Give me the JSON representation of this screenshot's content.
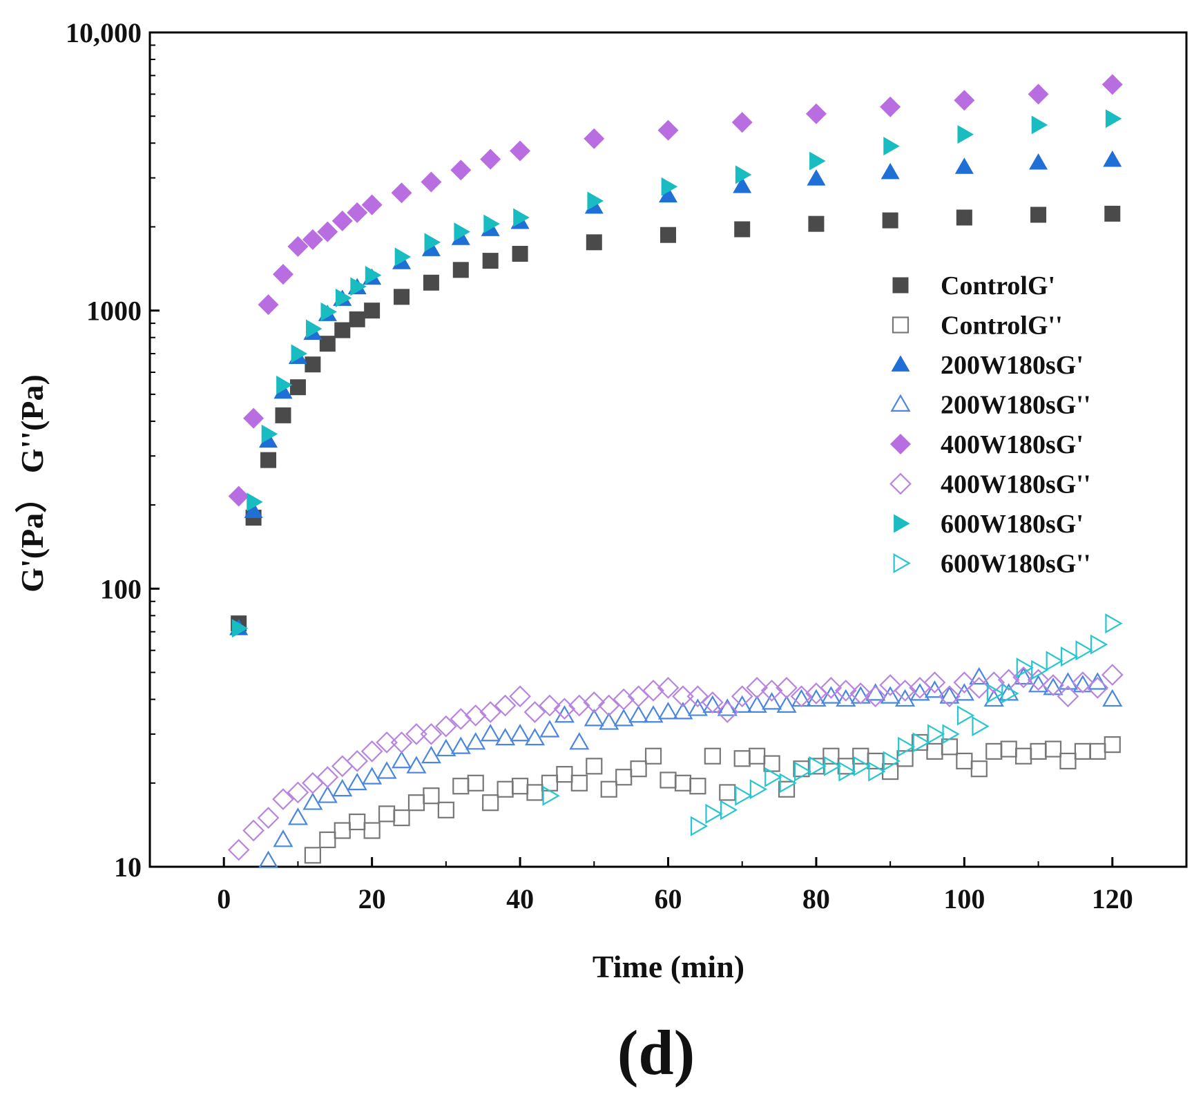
{
  "chart_data": {
    "type": "scatter",
    "panel_label": "(d)",
    "xlabel": "Time (min)",
    "ylabel": "G'(Pa） G''(Pa)",
    "xlim": [
      -10,
      130
    ],
    "ylim": [
      10,
      10000
    ],
    "yscale": "log",
    "x_ticks": [
      0,
      20,
      40,
      60,
      80,
      100,
      120
    ],
    "x_tick_labels": [
      "0",
      "20",
      "40",
      "60",
      "80",
      "100",
      "120"
    ],
    "y_ticks": [
      10,
      100,
      1000,
      10000
    ],
    "y_tick_labels": [
      "10",
      "100",
      "1000",
      "10,000"
    ],
    "legend_position": "right",
    "series": [
      {
        "name": "ControlG'",
        "marker": "square",
        "filled": true,
        "color": "#4a4a4a",
        "x": [
          2,
          4,
          6,
          8,
          10,
          12,
          14,
          16,
          18,
          20,
          24,
          28,
          32,
          36,
          40,
          50,
          60,
          70,
          80,
          90,
          100,
          110,
          120
        ],
        "y": [
          75,
          180,
          290,
          420,
          530,
          640,
          760,
          850,
          930,
          1000,
          1120,
          1260,
          1400,
          1510,
          1600,
          1760,
          1870,
          1960,
          2050,
          2110,
          2160,
          2210,
          2230
        ]
      },
      {
        "name": "ControlG''",
        "marker": "square",
        "filled": false,
        "color": "#777777",
        "x": [
          12,
          14,
          16,
          18,
          20,
          22,
          24,
          26,
          28,
          30,
          32,
          34,
          36,
          38,
          40,
          42,
          44,
          46,
          48,
          50,
          52,
          54,
          56,
          58,
          60,
          62,
          64,
          66,
          68,
          70,
          72,
          74,
          76,
          78,
          80,
          82,
          84,
          86,
          88,
          90,
          92,
          94,
          96,
          98,
          100,
          102,
          104,
          106,
          108,
          110,
          112,
          114,
          116,
          118,
          120
        ],
        "y": [
          11,
          12.5,
          13.5,
          14.5,
          13.5,
          15.5,
          15,
          17,
          18,
          16,
          19.5,
          20,
          17,
          19,
          19.5,
          18.5,
          20,
          21.5,
          20,
          23,
          19,
          21,
          22.5,
          25,
          20.5,
          20,
          19.5,
          25,
          18.5,
          24.5,
          25,
          23.5,
          19,
          22.5,
          23,
          25,
          23,
          25,
          24,
          22,
          24.5,
          28,
          26,
          27,
          24,
          22.5,
          26,
          26.5,
          25,
          26,
          26.5,
          24,
          26,
          26,
          27.5
        ]
      },
      {
        "name": "200W180sG'",
        "marker": "triangle-up",
        "filled": true,
        "color": "#1f6fd6",
        "x": [
          2,
          4,
          6,
          8,
          10,
          12,
          14,
          16,
          18,
          20,
          24,
          28,
          32,
          36,
          40,
          50,
          60,
          70,
          80,
          90,
          100,
          110,
          120
        ],
        "y": [
          72,
          190,
          340,
          510,
          680,
          830,
          970,
          1100,
          1210,
          1310,
          1490,
          1660,
          1820,
          1960,
          2080,
          2360,
          2590,
          2800,
          2980,
          3140,
          3280,
          3400,
          3480
        ]
      },
      {
        "name": "200W180sG''",
        "marker": "triangle-up",
        "filled": false,
        "color": "#4a86e0",
        "x": [
          6,
          8,
          10,
          12,
          14,
          16,
          18,
          20,
          22,
          24,
          26,
          28,
          30,
          32,
          34,
          36,
          38,
          40,
          42,
          44,
          46,
          48,
          50,
          52,
          54,
          56,
          58,
          60,
          62,
          64,
          66,
          68,
          70,
          72,
          74,
          76,
          78,
          80,
          82,
          84,
          86,
          88,
          90,
          92,
          94,
          96,
          98,
          100,
          102,
          104,
          106,
          108,
          110,
          112,
          114,
          116,
          118,
          120
        ],
        "y": [
          10.5,
          12.5,
          15,
          17,
          18,
          19,
          20,
          21,
          22,
          24,
          23,
          25,
          26.5,
          27,
          28,
          30,
          29,
          30,
          29,
          31,
          35,
          28,
          34,
          33,
          34,
          35,
          35,
          36,
          36,
          37,
          38,
          37,
          38,
          38,
          39,
          38,
          40,
          40,
          41,
          40,
          41,
          42,
          41,
          40,
          42,
          43,
          41,
          42,
          48,
          40,
          42,
          48,
          45,
          44,
          46,
          45,
          46,
          40
        ]
      },
      {
        "name": "400W180sG'",
        "marker": "diamond",
        "filled": true,
        "color": "#b86ee0",
        "x": [
          2,
          4,
          6,
          8,
          10,
          12,
          14,
          16,
          18,
          20,
          24,
          28,
          32,
          36,
          40,
          50,
          60,
          70,
          80,
          90,
          100,
          110,
          120
        ],
        "y": [
          215,
          410,
          1050,
          1350,
          1700,
          1800,
          1920,
          2100,
          2250,
          2400,
          2650,
          2900,
          3200,
          3500,
          3750,
          4150,
          4450,
          4750,
          5100,
          5400,
          5700,
          6000,
          6500
        ]
      },
      {
        "name": "400W180sG''",
        "marker": "diamond",
        "filled": false,
        "color": "#b784e0",
        "x": [
          2,
          4,
          6,
          8,
          10,
          12,
          14,
          16,
          18,
          20,
          22,
          24,
          26,
          28,
          30,
          32,
          34,
          36,
          38,
          40,
          42,
          44,
          46,
          48,
          50,
          52,
          54,
          56,
          58,
          60,
          62,
          64,
          66,
          68,
          70,
          72,
          74,
          76,
          78,
          80,
          82,
          84,
          86,
          88,
          90,
          92,
          94,
          96,
          98,
          100,
          102,
          104,
          106,
          108,
          110,
          112,
          114,
          116,
          118,
          120
        ],
        "y": [
          11.5,
          13.5,
          15,
          17.5,
          18.5,
          20,
          21,
          23,
          24,
          26,
          28,
          28,
          30,
          30,
          32,
          34,
          35,
          36,
          38,
          41,
          36,
          38,
          37,
          38,
          39,
          38,
          40,
          41,
          43,
          44,
          41,
          41,
          39,
          36,
          41,
          44,
          43,
          44,
          41,
          42,
          44,
          43,
          42,
          41,
          45,
          43,
          44,
          46,
          41,
          46,
          44,
          46,
          47,
          48,
          47,
          45,
          41,
          46,
          44,
          49
        ]
      },
      {
        "name": "600W180sG'",
        "marker": "triangle-right",
        "filled": true,
        "color": "#19bcc0",
        "x": [
          2,
          4,
          6,
          8,
          10,
          12,
          14,
          16,
          18,
          20,
          24,
          28,
          32,
          36,
          40,
          50,
          60,
          70,
          80,
          90,
          100,
          110,
          120
        ],
        "y": [
          72,
          205,
          360,
          540,
          700,
          860,
          990,
          1110,
          1220,
          1340,
          1560,
          1760,
          1920,
          2050,
          2160,
          2480,
          2790,
          3080,
          3450,
          3900,
          4300,
          4650,
          4900
        ]
      },
      {
        "name": "600W180sG''",
        "marker": "triangle-right",
        "filled": false,
        "color": "#26c6d0",
        "x": [
          44,
          64,
          66,
          68,
          70,
          72,
          74,
          76,
          78,
          80,
          82,
          84,
          86,
          88,
          90,
          92,
          94,
          96,
          98,
          100,
          102,
          104,
          106,
          108,
          110,
          112,
          114,
          116,
          118,
          120
        ],
        "y": [
          18,
          14,
          15.5,
          16,
          18,
          19,
          21,
          20,
          22,
          23,
          23,
          22,
          23,
          22,
          24,
          27,
          28,
          30,
          30,
          35,
          32,
          42,
          42,
          52,
          51,
          55,
          57,
          60,
          63,
          75
        ]
      }
    ]
  }
}
